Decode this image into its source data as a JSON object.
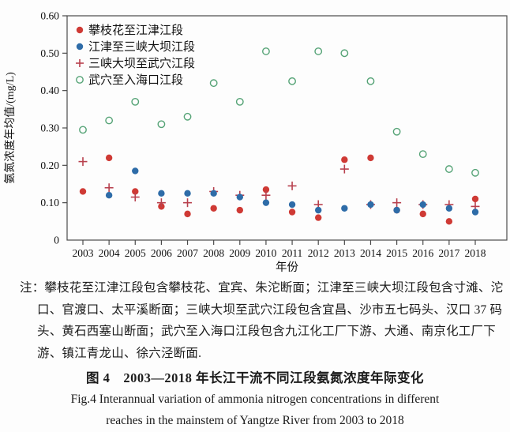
{
  "chart_data": {
    "type": "scatter",
    "title": "",
    "xlabel": "年份",
    "ylabel": "氨氮浓度年均值/(mg/L)",
    "x": [
      "2003",
      "2004",
      "2005",
      "2006",
      "2007",
      "2008",
      "2009",
      "2010",
      "2011",
      "2012",
      "2013",
      "2014",
      "2015",
      "2016",
      "2017",
      "2018"
    ],
    "ylim": [
      0,
      0.6
    ],
    "yticks": [
      0,
      0.1,
      0.2,
      0.3,
      0.4,
      0.5,
      0.6
    ],
    "ytick_labels": [
      "0",
      "0.10",
      "0.20",
      "0.30",
      "0.40",
      "0.50",
      "0.60"
    ],
    "grid": false,
    "legend_position": "top-left-inside",
    "series": [
      {
        "name": "攀枝花至江津江段",
        "marker": "filled-circle",
        "color": "#cf3a35",
        "values": [
          0.13,
          0.22,
          0.13,
          0.09,
          0.07,
          0.085,
          0.08,
          0.135,
          0.075,
          0.06,
          0.215,
          0.22,
          0.08,
          0.07,
          0.05,
          0.11
        ]
      },
      {
        "name": "江津至三峡大坝江段",
        "marker": "filled-circle",
        "color": "#2e6ca8",
        "values": [
          null,
          0.12,
          0.185,
          0.125,
          0.125,
          0.125,
          0.115,
          0.1,
          0.095,
          0.08,
          0.085,
          0.095,
          0.08,
          0.095,
          0.085,
          0.075
        ]
      },
      {
        "name": "三峡大坝至武穴江段",
        "marker": "plus",
        "color": "#b8414e",
        "values": [
          0.21,
          0.14,
          0.115,
          0.1,
          0.1,
          0.13,
          0.12,
          0.12,
          0.145,
          0.095,
          0.19,
          0.095,
          0.1,
          0.095,
          0.095,
          0.09
        ]
      },
      {
        "name": "武穴至入海口江段",
        "marker": "open-circle",
        "color": "#55a376",
        "values": [
          0.295,
          0.32,
          0.37,
          0.31,
          0.33,
          0.42,
          0.37,
          0.505,
          0.425,
          0.505,
          0.5,
          0.425,
          0.29,
          0.23,
          0.19,
          0.18
        ]
      }
    ],
    "axis_color": "#4a4a4a"
  },
  "notes": {
    "lines": [
      "注：攀枝花至江津江段包含攀枝花、宜宾、朱沱断面；江津至三峡大坝江段包含寸滩、沱",
      "口、官渡口、太平溪断面；三峡大坝至武穴江段包含宜昌、沙市五七码头、汉口 37 码",
      "头、黄石西塞山断面；武穴至入海口江段包含九江化工厂下游、大通、南京化工厂下",
      "游、镇江青龙山、徐六泾断面."
    ]
  },
  "caption": {
    "chinese": "图 4　2003—2018 年长江干流不同江段氨氮浓度年际变化",
    "english_line1": "Fig.4 Interannual variation of ammonia nitrogen concentrations in different",
    "english_line2": "reaches in the mainstem of Yangtze River from 2003 to 2018"
  }
}
